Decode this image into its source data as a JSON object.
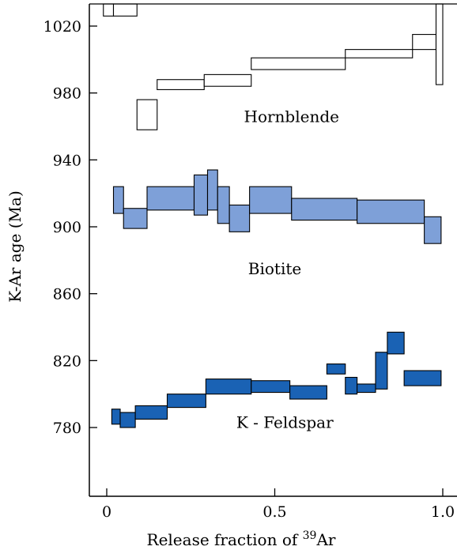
{
  "chart_data": {
    "type": "step-spectrum",
    "xlabel": "Release fraction of ",
    "xlabel_isotope": "39",
    "xlabel_element": "Ar",
    "ylabel": "K-Ar age (Ma)",
    "xlim": [
      -0.05,
      1.03
    ],
    "ylim": [
      620,
      1035
    ],
    "x_ticks": [
      0,
      0.5,
      1.0
    ],
    "x_tick_labels": [
      "0",
      "0.5",
      "1.0"
    ],
    "y_ticks": [
      780,
      820,
      860,
      900,
      940,
      980,
      1020
    ],
    "y_tick_labels": [
      "780",
      "820",
      "860",
      "900",
      "940",
      "980",
      "1020"
    ],
    "grid": false,
    "annotations": [
      {
        "text": "Hornblende",
        "x": 0.55,
        "y": 966
      },
      {
        "text": "Biotite",
        "x": 0.5,
        "y": 875
      },
      {
        "text": "K - Feldspar",
        "x": 0.53,
        "y": 783
      }
    ],
    "series": [
      {
        "name": "Hornblende",
        "color": "#ffffff",
        "steps": [
          {
            "x0": -0.01,
            "x1": 0.02,
            "ylo": 1026,
            "yhi": 1040
          },
          {
            "x0": 0.02,
            "x1": 0.09,
            "ylo": 1026,
            "yhi": 1040
          },
          {
            "x0": 0.09,
            "x1": 0.15,
            "ylo": 958,
            "yhi": 976
          },
          {
            "x0": 0.15,
            "x1": 0.29,
            "ylo": 982,
            "yhi": 988
          },
          {
            "x0": 0.29,
            "x1": 0.43,
            "ylo": 984,
            "yhi": 991
          },
          {
            "x0": 0.43,
            "x1": 0.71,
            "ylo": 994,
            "yhi": 1001
          },
          {
            "x0": 0.71,
            "x1": 0.91,
            "ylo": 1001,
            "yhi": 1006
          },
          {
            "x0": 0.91,
            "x1": 0.98,
            "ylo": 1006,
            "yhi": 1015
          },
          {
            "x0": 0.98,
            "x1": 1.0,
            "ylo": 985,
            "yhi": 1040
          }
        ]
      },
      {
        "name": "Biotite",
        "color": "#7ea0d8",
        "steps": [
          {
            "x0": 0.02,
            "x1": 0.05,
            "ylo": 908,
            "yhi": 924
          },
          {
            "x0": 0.05,
            "x1": 0.12,
            "ylo": 899,
            "yhi": 911
          },
          {
            "x0": 0.12,
            "x1": 0.26,
            "ylo": 910,
            "yhi": 924
          },
          {
            "x0": 0.26,
            "x1": 0.3,
            "ylo": 907,
            "yhi": 931
          },
          {
            "x0": 0.3,
            "x1": 0.33,
            "ylo": 910,
            "yhi": 934
          },
          {
            "x0": 0.33,
            "x1": 0.365,
            "ylo": 902,
            "yhi": 924
          },
          {
            "x0": 0.365,
            "x1": 0.425,
            "ylo": 897,
            "yhi": 913
          },
          {
            "x0": 0.425,
            "x1": 0.55,
            "ylo": 908,
            "yhi": 924
          },
          {
            "x0": 0.55,
            "x1": 0.745,
            "ylo": 904,
            "yhi": 917
          },
          {
            "x0": 0.745,
            "x1": 0.945,
            "ylo": 902,
            "yhi": 916
          },
          {
            "x0": 0.945,
            "x1": 0.995,
            "ylo": 890,
            "yhi": 906
          }
        ]
      },
      {
        "name": "K - Feldspar",
        "color": "#1a62b4",
        "steps": [
          {
            "x0": 0.015,
            "x1": 0.04,
            "ylo": 782,
            "yhi": 791
          },
          {
            "x0": 0.04,
            "x1": 0.085,
            "ylo": 780,
            "yhi": 789
          },
          {
            "x0": 0.085,
            "x1": 0.18,
            "ylo": 785,
            "yhi": 793
          },
          {
            "x0": 0.18,
            "x1": 0.295,
            "ylo": 792,
            "yhi": 800
          },
          {
            "x0": 0.295,
            "x1": 0.43,
            "ylo": 800,
            "yhi": 809
          },
          {
            "x0": 0.43,
            "x1": 0.545,
            "ylo": 801,
            "yhi": 808
          },
          {
            "x0": 0.545,
            "x1": 0.655,
            "ylo": 797,
            "yhi": 805
          },
          {
            "x0": 0.655,
            "x1": 0.71,
            "ylo": 812,
            "yhi": 818
          },
          {
            "x0": 0.71,
            "x1": 0.745,
            "ylo": 800,
            "yhi": 810
          },
          {
            "x0": 0.745,
            "x1": 0.8,
            "ylo": 801,
            "yhi": 806
          },
          {
            "x0": 0.8,
            "x1": 0.835,
            "ylo": 803,
            "yhi": 825
          },
          {
            "x0": 0.835,
            "x1": 0.885,
            "ylo": 824,
            "yhi": 837
          },
          {
            "x0": 0.885,
            "x1": 0.995,
            "ylo": 805,
            "yhi": 814
          }
        ]
      }
    ]
  }
}
